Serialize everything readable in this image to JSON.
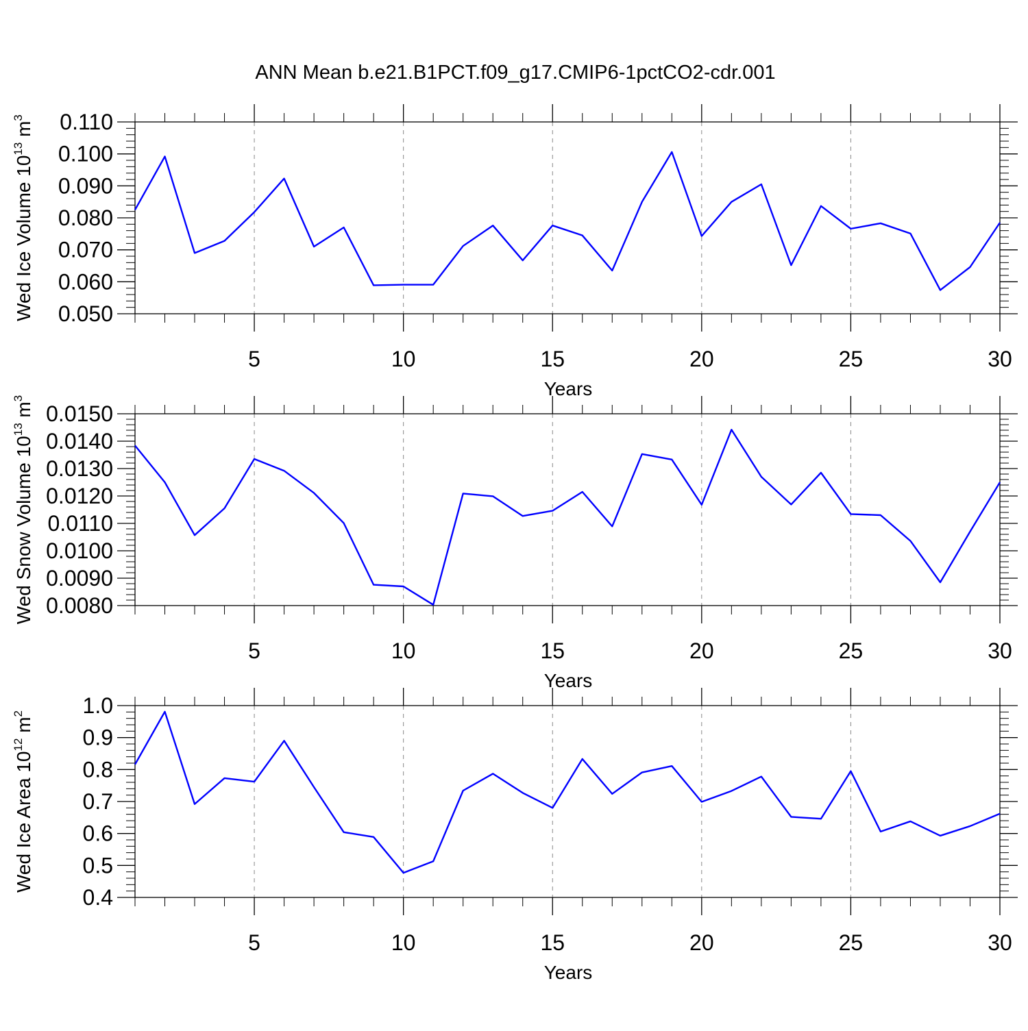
{
  "title": "ANN Mean b.e21.B1PCT.f09_g17.CMIP6-1pctCO2-cdr.001",
  "chart_data": [
    {
      "type": "line",
      "title": "",
      "xlabel": "Years",
      "ylabel_main": "Wed Ice Volume 10",
      "ylabel_exp": "13",
      "ylabel_unit": " m",
      "ylabel_unit_exp": "3",
      "xlim": [
        1,
        30
      ],
      "ylim": [
        0.05,
        0.11
      ],
      "xticks": [
        5,
        10,
        15,
        20,
        25,
        30
      ],
      "xtick_labels": [
        "5",
        "10",
        "15",
        "20",
        "25",
        "30"
      ],
      "yticks": [
        0.05,
        0.06,
        0.07,
        0.08,
        0.09,
        0.1,
        0.11
      ],
      "ytick_labels": [
        "0.050",
        "0.060",
        "0.070",
        "0.080",
        "0.090",
        "0.100",
        "0.110"
      ],
      "grid": "vertical-dashed",
      "line_color": "#0000ff",
      "series": [
        {
          "x": [
            1,
            2,
            3,
            4,
            5,
            6,
            7,
            8,
            9,
            10,
            11,
            12,
            13,
            14,
            15,
            16,
            17,
            18,
            19,
            20,
            21,
            22,
            23,
            24,
            25,
            26,
            27,
            28,
            29,
            30
          ],
          "values": [
            0.0825,
            0.0992,
            0.069,
            0.0728,
            0.0818,
            0.0923,
            0.071,
            0.077,
            0.0589,
            0.0591,
            0.0591,
            0.0712,
            0.0776,
            0.0667,
            0.0776,
            0.0745,
            0.0635,
            0.085,
            0.1006,
            0.0743,
            0.085,
            0.0905,
            0.0652,
            0.0837,
            0.0766,
            0.0783,
            0.0751,
            0.0574,
            0.0646,
            0.0785
          ]
        }
      ]
    },
    {
      "type": "line",
      "title": "",
      "xlabel": "Years",
      "ylabel_main": "Wed Snow Volume 10",
      "ylabel_exp": "13",
      "ylabel_unit": " m",
      "ylabel_unit_exp": "3",
      "xlim": [
        1,
        30
      ],
      "ylim": [
        0.008,
        0.015
      ],
      "xticks": [
        5,
        10,
        15,
        20,
        25,
        30
      ],
      "xtick_labels": [
        "5",
        "10",
        "15",
        "20",
        "25",
        "30"
      ],
      "yticks": [
        0.008,
        0.009,
        0.01,
        0.011,
        0.012,
        0.013,
        0.014,
        0.015
      ],
      "ytick_labels": [
        "0.0080",
        "0.0090",
        "0.0100",
        "0.0110",
        "0.0120",
        "0.0130",
        "0.0140",
        "0.0150"
      ],
      "grid": "vertical-dashed",
      "line_color": "#0000ff",
      "series": [
        {
          "x": [
            1,
            2,
            3,
            4,
            5,
            6,
            7,
            8,
            9,
            10,
            11,
            12,
            13,
            14,
            15,
            16,
            17,
            18,
            19,
            20,
            21,
            22,
            23,
            24,
            25,
            26,
            27,
            28,
            29,
            30
          ],
          "values": [
            0.01384,
            0.0125,
            0.01057,
            0.01155,
            0.01335,
            0.01292,
            0.01211,
            0.01101,
            0.00876,
            0.0087,
            0.00803,
            0.01209,
            0.01199,
            0.01127,
            0.01146,
            0.01215,
            0.01089,
            0.01353,
            0.01333,
            0.01168,
            0.01442,
            0.0127,
            0.01169,
            0.01285,
            0.01134,
            0.0113,
            0.01036,
            0.00885,
            0.0107,
            0.0125
          ]
        }
      ]
    },
    {
      "type": "line",
      "title": "",
      "xlabel": "Years",
      "ylabel_main": "Wed Ice Area 10",
      "ylabel_exp": "12",
      "ylabel_unit": " m",
      "ylabel_unit_exp": "2",
      "xlim": [
        1,
        30
      ],
      "ylim": [
        0.4,
        1.0
      ],
      "xticks": [
        5,
        10,
        15,
        20,
        25,
        30
      ],
      "xtick_labels": [
        "5",
        "10",
        "15",
        "20",
        "25",
        "30"
      ],
      "yticks": [
        0.4,
        0.5,
        0.6,
        0.7,
        0.8,
        0.9,
        1.0
      ],
      "ytick_labels": [
        "0.4",
        "0.5",
        "0.6",
        "0.7",
        "0.8",
        "0.9",
        "1.0"
      ],
      "grid": "vertical-dashed",
      "line_color": "#0000ff",
      "series": [
        {
          "x": [
            1,
            2,
            3,
            4,
            5,
            6,
            7,
            8,
            9,
            10,
            11,
            12,
            13,
            14,
            15,
            16,
            17,
            18,
            19,
            20,
            21,
            22,
            23,
            24,
            25,
            26,
            27,
            28,
            29,
            30
          ],
          "values": [
            0.816,
            0.981,
            0.692,
            0.773,
            0.762,
            0.89,
            0.745,
            0.604,
            0.589,
            0.477,
            0.513,
            0.734,
            0.787,
            0.727,
            0.68,
            0.833,
            0.724,
            0.791,
            0.811,
            0.699,
            0.733,
            0.778,
            0.652,
            0.646,
            0.795,
            0.606,
            0.638,
            0.593,
            0.623,
            0.662
          ]
        }
      ]
    }
  ]
}
